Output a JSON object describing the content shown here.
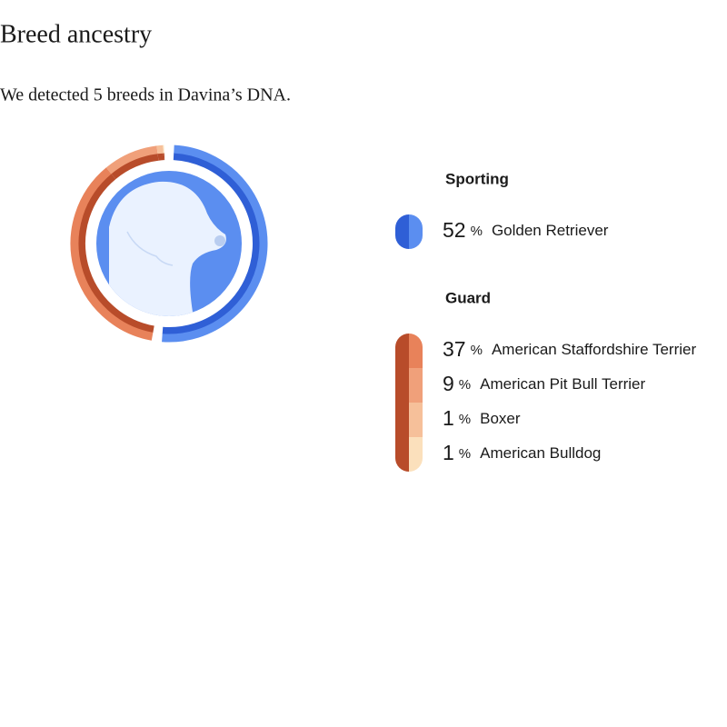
{
  "header": {
    "title": "Breed ancestry",
    "summary": "We detected 5 breeds in Davina’s DNA."
  },
  "chart_data": {
    "type": "donut",
    "unit": "%",
    "groups": [
      {
        "name": "Sporting",
        "color": "#2f5fd6",
        "breeds": [
          {
            "name": "Golden Retriever",
            "value": 52,
            "color": "#5b8ef0"
          }
        ]
      },
      {
        "name": "Guard",
        "color": "#b84c2a",
        "breeds": [
          {
            "name": "American Staffordshire Terrier",
            "value": 37,
            "color": "#e8825a"
          },
          {
            "name": "American Pit Bull Terrier",
            "value": 9,
            "color": "#f0a07a"
          },
          {
            "name": "Boxer",
            "value": 1,
            "color": "#f6c09a"
          },
          {
            "name": "American Bulldog",
            "value": 1,
            "color": "#fbe0bc"
          }
        ]
      }
    ]
  }
}
